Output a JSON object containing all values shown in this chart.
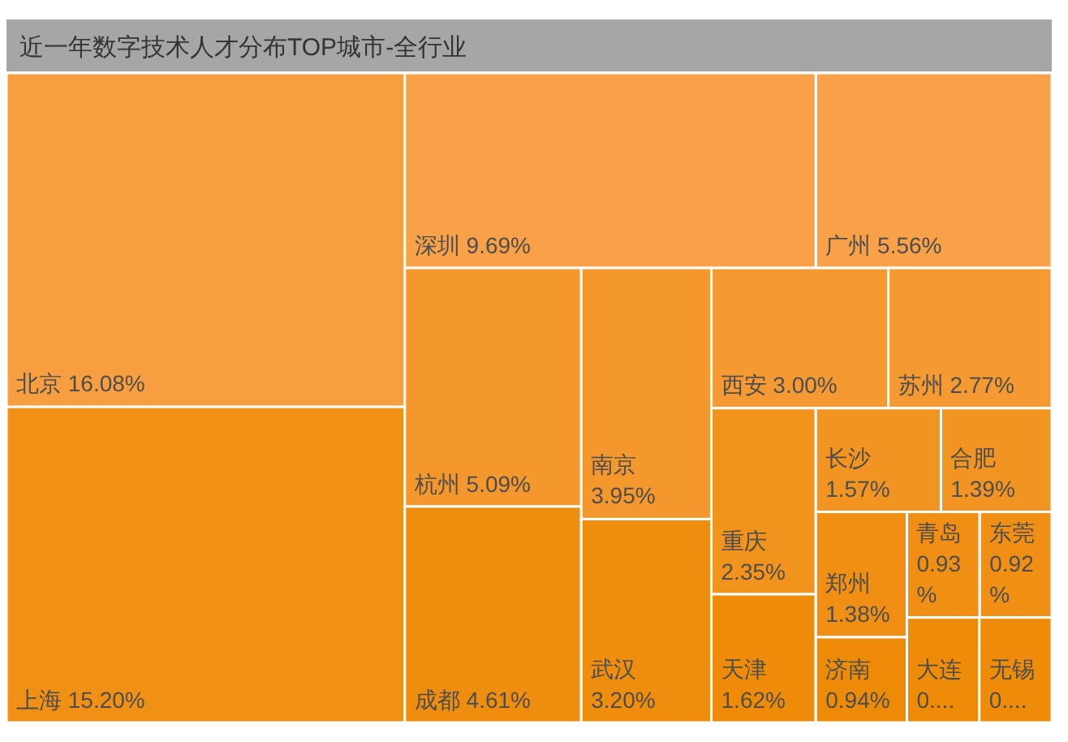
{
  "chart_data": {
    "type": "other",
    "title": "近一年数字技术人才分布TOP城市-全行业",
    "categories": [
      "北京",
      "上海",
      "深圳",
      "广州",
      "杭州",
      "成都",
      "南京",
      "武汉",
      "西安",
      "苏州",
      "重庆",
      "天津",
      "长沙",
      "合肥",
      "郑州",
      "济南",
      "青岛",
      "东莞",
      "大连",
      "无锡"
    ],
    "values": [
      16.08,
      15.2,
      9.69,
      5.56,
      5.09,
      4.61,
      3.95,
      3.2,
      3.0,
      2.77,
      2.35,
      1.62,
      1.57,
      1.39,
      1.38,
      0.94,
      0.93,
      0.92,
      null,
      null
    ],
    "value_labels": [
      "16.08%",
      "15.20%",
      "9.69%",
      "5.56%",
      "5.09%",
      "4.61%",
      "3.95%",
      "3.20%",
      "3.00%",
      "2.77%",
      "2.35%",
      "1.62%",
      "1.57%",
      "1.39%",
      "1.38%",
      "0.94%",
      "0.93%",
      "0.92%",
      "0....",
      "0...."
    ],
    "colors": [
      "#f79e40",
      "#f09015",
      "#f8a149",
      "#f8a149",
      "#f4972c",
      "#ef8d0e",
      "#f4972c",
      "#ef8d0e",
      "#f59a33",
      "#f59a33",
      "#f1931d",
      "#ee8c09",
      "#f29422",
      "#f29422",
      "#f08f14",
      "#ee8b06",
      "#f08f14",
      "#f08f14",
      "#ee8b07",
      "#ee8b07"
    ]
  }
}
